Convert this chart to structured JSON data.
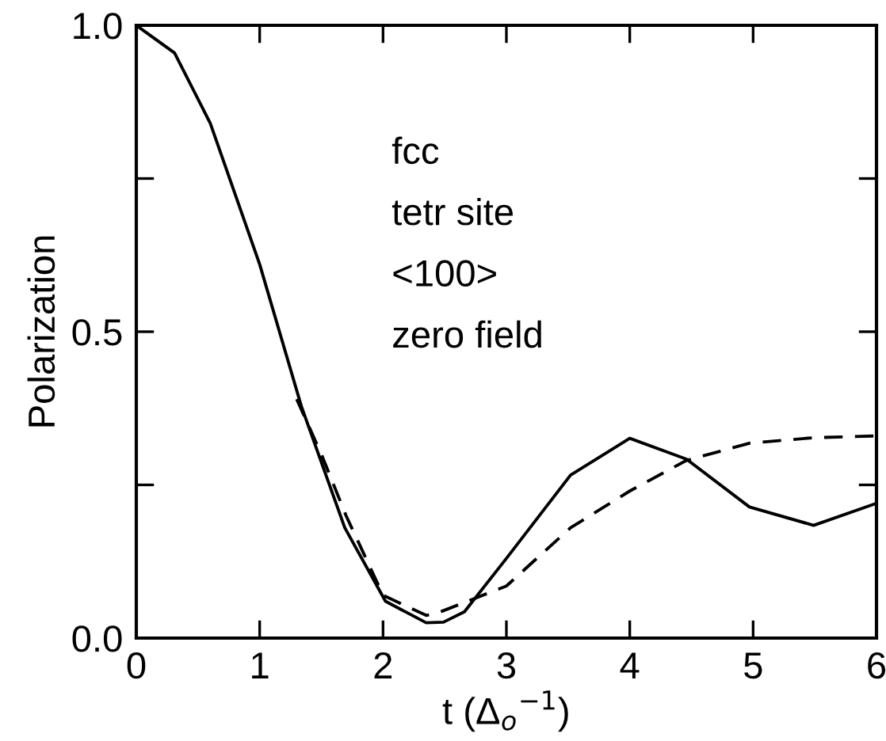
{
  "chart_data": {
    "type": "line",
    "xlabel": "t (Δ$_{o}$$^{−1}$)",
    "ylabel": "Polarization",
    "annotations": [
      "fcc",
      "tetr site",
      "<100>",
      "zero field"
    ],
    "series": [
      {
        "color": "#000000",
        "line_style": "solid",
        "x": [
          0,
          0.31,
          0.6,
          1.0,
          1.34,
          1.69,
          2.02,
          2.35,
          2.49,
          2.66,
          3.0,
          3.52,
          4.0,
          4.46,
          4.97,
          5.49,
          6.0
        ],
        "values": [
          1.0,
          0.955,
          0.84,
          0.61,
          0.377,
          0.18,
          0.06,
          0.025,
          0.026,
          0.043,
          0.13,
          0.266,
          0.326,
          0.292,
          0.214,
          0.184,
          0.22
        ]
      },
      {
        "color": "#000000",
        "line_style": "dashed",
        "x": [
          1.3,
          1.5,
          1.7,
          2.0,
          2.35,
          2.43,
          3.0,
          3.52,
          4.0,
          4.46,
          4.97,
          5.49,
          6.0
        ],
        "values": [
          0.39,
          0.3,
          0.2,
          0.07,
          0.037,
          0.04,
          0.085,
          0.18,
          0.24,
          0.29,
          0.318,
          0.327,
          0.33
        ]
      }
    ],
    "xlim": [
      0,
      6
    ],
    "ylim": [
      0,
      1.0
    ],
    "xticks": [
      0,
      1,
      2,
      3,
      4,
      5,
      6
    ],
    "yticks": [
      {
        "value": 0,
        "label": "0.0"
      },
      {
        "value": 0.25,
        "label": null
      },
      {
        "value": 0.5,
        "label": "0.5"
      },
      {
        "value": 0.75,
        "label": null
      },
      {
        "value": 1.0,
        "label": "1.0"
      }
    ],
    "grid": false,
    "legend": false
  }
}
